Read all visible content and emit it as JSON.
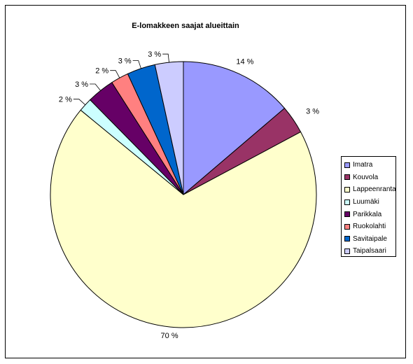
{
  "chart_data": {
    "type": "pie",
    "title": "E-lomakkeen saajat alueittain",
    "categories": [
      "Imatra",
      "Kouvola",
      "Lappeenranta",
      "Luumäki",
      "Parikkala",
      "Ruokolahti",
      "Savitaipale",
      "Taipalsaari"
    ],
    "values": [
      14,
      3.5,
      70,
      1.7,
      3.4,
      2.2,
      3.5,
      3.5
    ],
    "labels": [
      "14 %",
      "3 %",
      "70 %",
      "2 %",
      "3 %",
      "2 %",
      "3 %",
      "3 %"
    ],
    "colors": [
      "#9999ff",
      "#993366",
      "#ffffcc",
      "#ccffff",
      "#660066",
      "#ff8080",
      "#0066cc",
      "#ccccff"
    ],
    "start_angle": "12 o'clock",
    "direction": "clockwise",
    "legend_position": "right"
  }
}
